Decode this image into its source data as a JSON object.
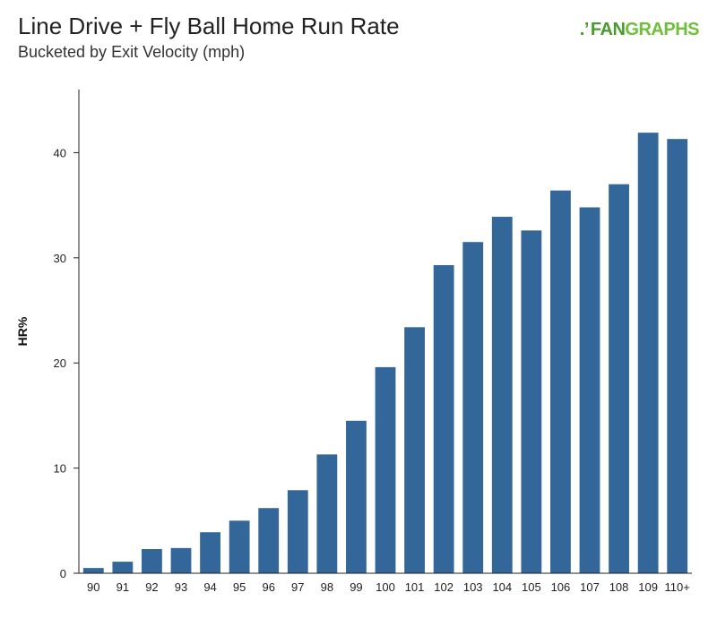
{
  "header": {
    "title": "Line Drive + Fly Ball Home Run Rate",
    "subtitle": "Bucketed by Exit Velocity (mph)"
  },
  "logo": {
    "mark": ".’",
    "brand_part1": "FAN",
    "brand_part2": "GRAPHS",
    "icon": "fangraphs-logo"
  },
  "colors": {
    "bar": "#336699",
    "axis": "#222222",
    "brand_dark": "#4a9a2e",
    "brand_light": "#6fbf3a"
  },
  "chart_data": {
    "type": "bar",
    "title": "Line Drive + Fly Ball Home Run Rate",
    "subtitle": "Bucketed by Exit Velocity (mph)",
    "xlabel": "",
    "ylabel": "HR%",
    "categories": [
      "90",
      "91",
      "92",
      "93",
      "94",
      "95",
      "96",
      "97",
      "98",
      "99",
      "100",
      "101",
      "102",
      "103",
      "104",
      "105",
      "106",
      "107",
      "108",
      "109",
      "110+"
    ],
    "values": [
      0.5,
      1.1,
      2.3,
      2.4,
      3.9,
      5.0,
      6.2,
      7.9,
      11.3,
      14.5,
      19.6,
      23.4,
      29.3,
      31.5,
      33.9,
      32.6,
      36.4,
      34.8,
      37.0,
      41.9,
      41.3
    ],
    "yticks": [
      0,
      10,
      20,
      30,
      40
    ],
    "ylim": [
      0,
      46
    ],
    "grid": false,
    "legend": "none"
  }
}
